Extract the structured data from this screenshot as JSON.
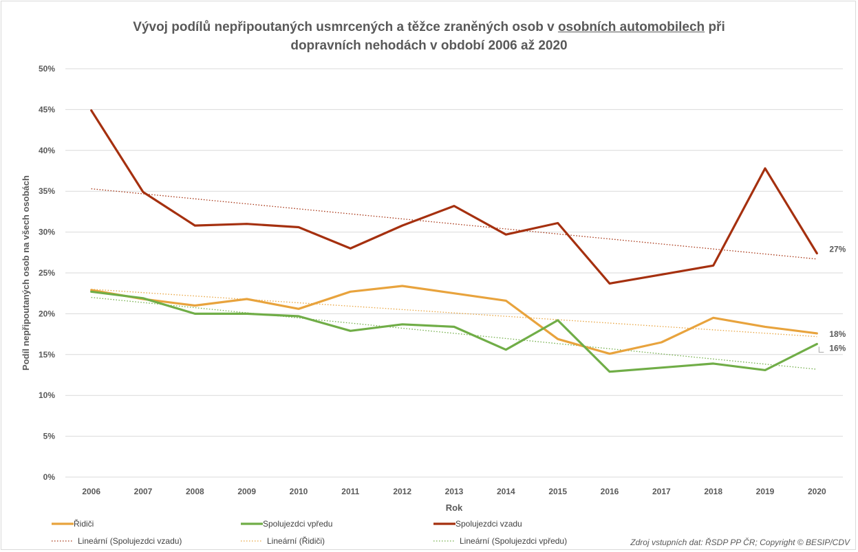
{
  "chart_data": {
    "type": "line",
    "title_line1_pre": "Vývoj podílů nepřipoutaných usmrcených a těžce zraněných osob v ",
    "title_line1_underlined": "osobních automobilech",
    "title_line1_post": " při",
    "title_line2": "dopravních nehodách v období 2006 až 2020",
    "xlabel": "Rok",
    "ylabel": "Podíl nepřipoutaných osob na všech osobách",
    "ylim": [
      0,
      50
    ],
    "y_ticks": [
      0,
      5,
      10,
      15,
      20,
      25,
      30,
      35,
      40,
      45,
      50
    ],
    "y_tick_labels": [
      "0%",
      "5%",
      "10%",
      "15%",
      "20%",
      "25%",
      "30%",
      "35%",
      "40%",
      "45%",
      "50%"
    ],
    "x": [
      "2006",
      "2007",
      "2008",
      "2009",
      "2010",
      "2011",
      "2012",
      "2013",
      "2014",
      "2015",
      "2016",
      "2017",
      "2018",
      "2019",
      "2020"
    ],
    "grid": true,
    "series": [
      {
        "name": "Řidiči",
        "color": "#E8A33D",
        "values": [
          22.9,
          21.8,
          21.0,
          21.8,
          20.6,
          22.7,
          23.4,
          22.5,
          21.6,
          16.9,
          15.1,
          16.5,
          19.5,
          18.4,
          17.6
        ],
        "end_label": "18%",
        "trend_name": "Lineární (Řidiči)",
        "trend": [
          23.0,
          17.2
        ]
      },
      {
        "name": "Spolujezdci vpředu",
        "color": "#70AD47",
        "values": [
          22.7,
          21.9,
          20.0,
          20.0,
          19.7,
          17.9,
          18.7,
          18.4,
          15.6,
          19.2,
          12.9,
          13.4,
          13.9,
          13.1,
          16.3
        ],
        "end_label": "16%",
        "trend_name": "Lineární (Spolujezdci vpředu)",
        "trend": [
          22.0,
          13.2
        ]
      },
      {
        "name": "Spolujezdci vzadu",
        "color": "#A5300F",
        "values": [
          44.9,
          34.9,
          30.8,
          31.0,
          30.6,
          28.0,
          30.8,
          33.2,
          29.7,
          31.1,
          23.7,
          24.8,
          25.9,
          37.8,
          27.4
        ],
        "end_label": "27%",
        "trend_name": "Lineární (Spolujezdci vzadu)",
        "trend": [
          35.3,
          26.7
        ]
      }
    ],
    "legend_placement": "bottom",
    "source": "Zdroj vstupních dat: ŘSDP PP ČR; Copyright © BESIP/CDV"
  }
}
